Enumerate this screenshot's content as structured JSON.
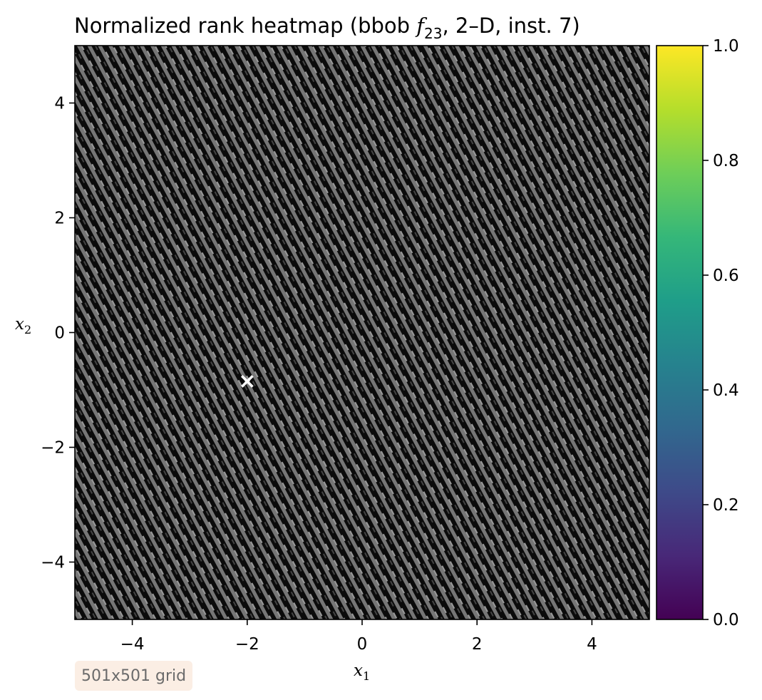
{
  "chart_data": {
    "type": "heatmap",
    "title": {
      "prefix": "Normalized rank heatmap (bbob ",
      "func_symbol": "f",
      "func_subscript": "23",
      "suffix": ", 2–D, inst. 7)"
    },
    "xlabel": {
      "symbol": "x",
      "subscript": "1"
    },
    "ylabel": {
      "symbol": "x",
      "subscript": "2"
    },
    "xlim": [
      -5,
      5
    ],
    "ylim": [
      -5,
      5
    ],
    "xticks": [
      -4,
      -2,
      0,
      2,
      4
    ],
    "yticks": [
      -4,
      -2,
      0,
      2,
      4
    ],
    "xtick_labels": [
      "−4",
      "−2",
      "0",
      "2",
      "4"
    ],
    "ytick_labels": [
      "−4",
      "−2",
      "0",
      "2",
      "4"
    ],
    "colorbar": {
      "cmap": "viridis",
      "range": [
        0,
        1
      ],
      "ticks": [
        0,
        0.2,
        0.4,
        0.6,
        0.8,
        1.0
      ],
      "tick_labels": [
        "0.0",
        "0.2",
        "0.4",
        "0.6",
        "0.8",
        "1.0"
      ],
      "stops": [
        "#440154",
        "#482878",
        "#3e4a89",
        "#31688e",
        "#26828e",
        "#1f9e89",
        "#35b779",
        "#6ece58",
        "#b5de2b",
        "#fde725"
      ]
    },
    "pattern": {
      "description_colors": [
        "#0a0a0a",
        "#7a7a7a"
      ],
      "stripe_angle_deg": -62
    },
    "marker": {
      "symbol": "×",
      "x": -2.0,
      "y": -0.85,
      "color": "#ffffff"
    },
    "grid": false
  },
  "annotation": {
    "grid_size_text": "501x501 grid"
  }
}
